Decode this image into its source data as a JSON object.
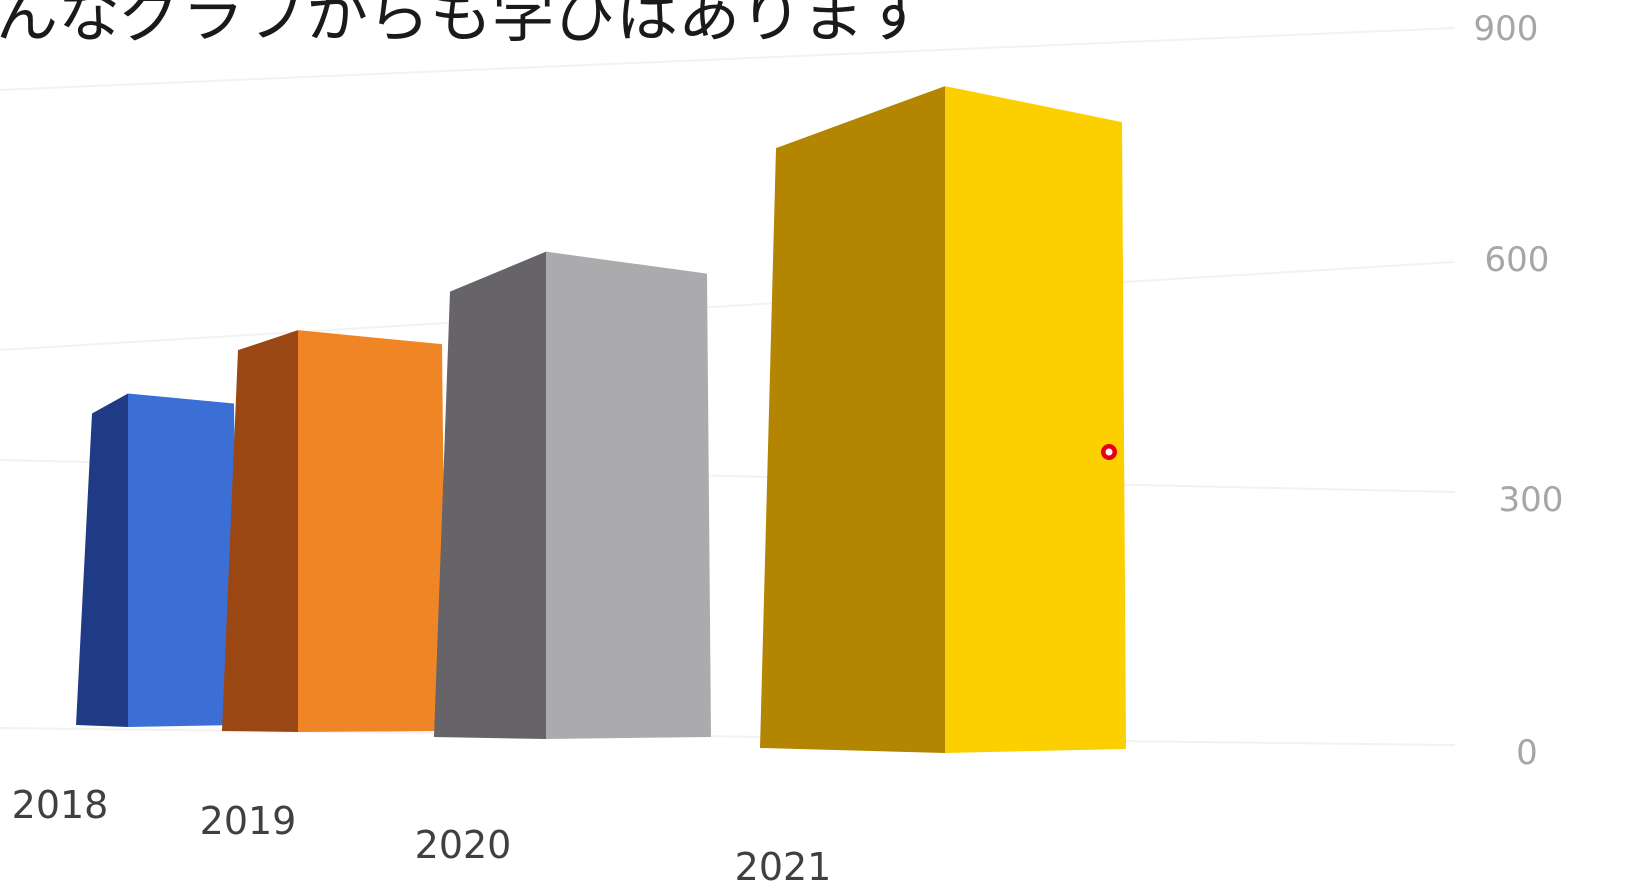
{
  "chart_data": {
    "type": "bar",
    "title": "んなグラフからも学びはあります",
    "xlabel": "",
    "ylabel": "",
    "categories": [
      "2018",
      "2019",
      "2020",
      "2021"
    ],
    "values": [
      390,
      470,
      570,
      780
    ],
    "ylim": [
      0,
      900
    ],
    "yticks": [
      "0",
      "300",
      "600",
      "900"
    ],
    "bar_colors": [
      "#3b6fd6",
      "#f08526",
      "#ababad",
      "#fbcf00"
    ],
    "side_colors": [
      "#1f3b85",
      "#9b4714",
      "#666468",
      "#b38500"
    ],
    "grid": true,
    "legend": "none",
    "style": "3d-perspective",
    "marker_color": "#e60012"
  }
}
